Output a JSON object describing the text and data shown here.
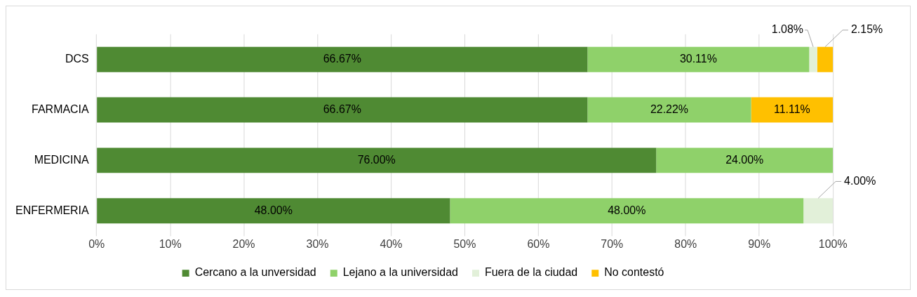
{
  "chart_data": {
    "type": "bar",
    "orientation": "horizontal",
    "stacked": true,
    "categories": [
      "DCS",
      "FARMACIA",
      "MEDICINA",
      "ENFERMERIA"
    ],
    "series": [
      {
        "name": "Cercano a la unversidad",
        "color": "#4f8a33",
        "values": [
          66.67,
          66.67,
          76.0,
          48.0
        ],
        "value_labels": [
          "66.67%",
          "66.67%",
          "76.00%",
          "48.00%"
        ]
      },
      {
        "name": "Lejano a la universidad",
        "color": "#8fd16a",
        "values": [
          30.11,
          22.22,
          24.0,
          48.0
        ],
        "value_labels": [
          "30.11%",
          "22.22%",
          "24.00%",
          "48.00%"
        ]
      },
      {
        "name": "Fuera de la ciudad",
        "color": "#e2f0d9",
        "values": [
          1.08,
          null,
          null,
          4.0
        ],
        "value_labels": [
          "1.08%",
          null,
          null,
          "4.00%"
        ]
      },
      {
        "name": "No contestó",
        "color": "#ffc000",
        "values": [
          2.15,
          11.11,
          null,
          null
        ],
        "value_labels": [
          "2.15%",
          "11.11%",
          null,
          null
        ]
      }
    ],
    "xlim": [
      0,
      100
    ],
    "xticks": [
      {
        "value": 0,
        "label": "0%"
      },
      {
        "value": 10,
        "label": "10%"
      },
      {
        "value": 20,
        "label": "20%"
      },
      {
        "value": 30,
        "label": "30%"
      },
      {
        "value": 40,
        "label": "40%"
      },
      {
        "value": 50,
        "label": "50%"
      },
      {
        "value": 60,
        "label": "60%"
      },
      {
        "value": 70,
        "label": "70%"
      },
      {
        "value": 80,
        "label": "80%"
      },
      {
        "value": 90,
        "label": "90%"
      },
      {
        "value": 100,
        "label": "100%"
      }
    ],
    "grid": "x",
    "legend": "bottom"
  }
}
